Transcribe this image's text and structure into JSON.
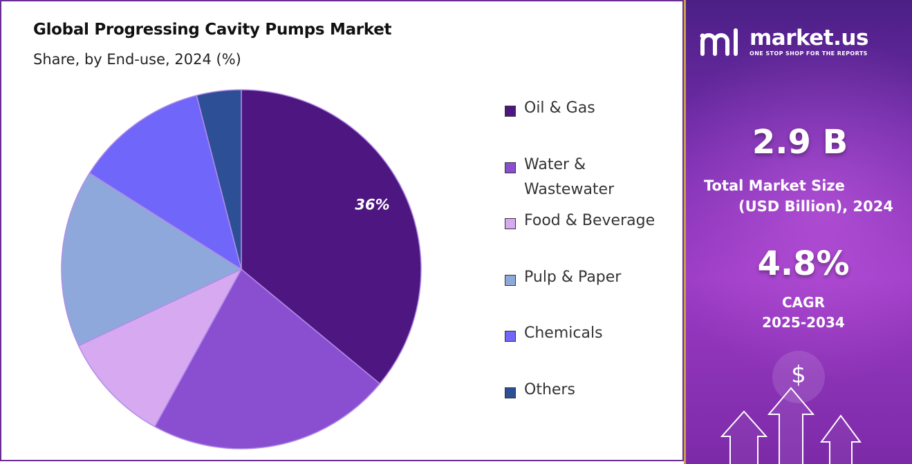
{
  "chart_data": {
    "type": "pie",
    "title": "Global Progressing Cavity Pumps Market",
    "subtitle": "Share, by End-use, 2024 (%)",
    "categories": [
      "Oil & Gas",
      "Water & Wastewater",
      "Food & Beverage",
      "Pulp & Paper",
      "Chemicals",
      "Others"
    ],
    "values": [
      36,
      22,
      10,
      16,
      12,
      4
    ],
    "colors": [
      "#4d1680",
      "#8a4fd1",
      "#d6a9f0",
      "#8fa8dc",
      "#7066f9",
      "#2c4f96"
    ],
    "data_labels": [
      "36%",
      "",
      "",
      "",
      "",
      ""
    ],
    "legend_position": "right"
  },
  "promo": {
    "brand_name": "market.us",
    "brand_tagline": "ONE STOP SHOP FOR THE REPORTS",
    "market_size_value": "2.9 B",
    "market_size_label_line1": "Total Market Size",
    "market_size_label_line2": "(USD Billion), 2024",
    "cagr_value": "4.8%",
    "cagr_label_line1": "CAGR",
    "cagr_label_line2": "2025-2034",
    "dollar_symbol": "$"
  }
}
